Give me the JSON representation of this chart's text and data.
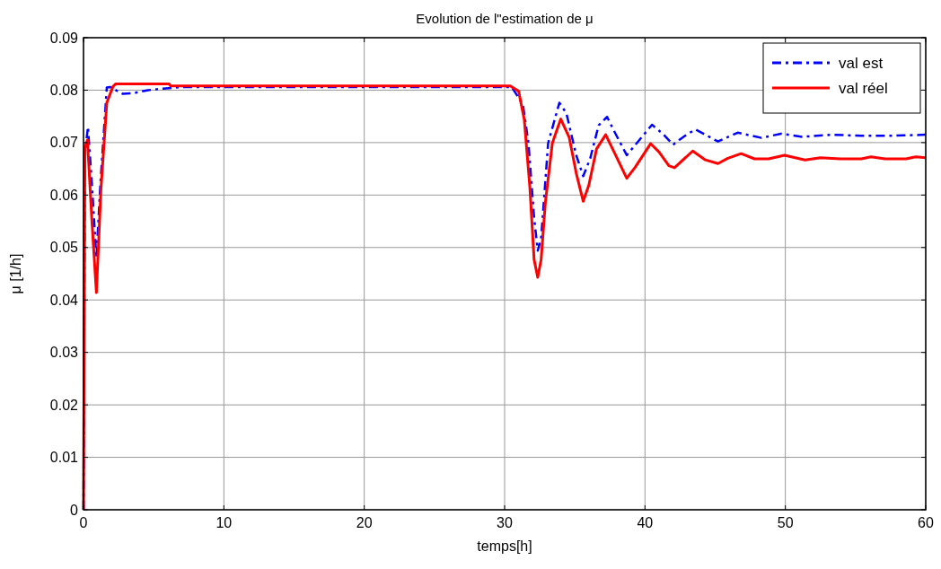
{
  "chart_data": {
    "type": "line",
    "title": "Evolution de l\"estimation de μ",
    "xlabel": "temps[h]",
    "ylabel": "μ [1/h]",
    "xlim": [
      0,
      60
    ],
    "xticks": [
      0,
      10,
      20,
      30,
      40,
      50,
      60
    ],
    "ylim": [
      0,
      0.09
    ],
    "yticks": [
      0,
      0.01,
      0.02,
      0.03,
      0.04,
      0.05,
      0.06,
      0.07,
      0.08,
      0.09
    ],
    "grid": true,
    "legend": "top right",
    "series": [
      {
        "name": "val est",
        "color": "#0000ff",
        "line_style": "dashdot",
        "x": [
          0,
          0.1,
          0.32,
          0.6,
          0.92,
          1.2,
          1.66,
          1.9,
          2.3,
          2.8,
          3.5,
          4.6,
          5.7,
          7,
          30.5,
          31.3,
          31.7,
          32.1,
          32.36,
          32.6,
          33.1,
          33.9,
          34.4,
          35.1,
          35.6,
          36.1,
          36.7,
          37.3,
          37.8,
          38.7,
          39.6,
          40.5,
          41.3,
          42.0,
          43.0,
          43.6,
          45.2,
          46.6,
          48.3,
          49.7,
          51.2,
          53.3,
          55.4,
          57.5,
          60
        ],
        "values": [
          0,
          0.068,
          0.073,
          0.062,
          0.048,
          0.062,
          0.0805,
          0.0806,
          0.08,
          0.0793,
          0.0794,
          0.08,
          0.0803,
          0.0806,
          0.0806,
          0.0773,
          0.0699,
          0.0557,
          0.0494,
          0.0517,
          0.0699,
          0.0776,
          0.0756,
          0.0676,
          0.0636,
          0.067,
          0.0733,
          0.0749,
          0.0722,
          0.0676,
          0.0705,
          0.0734,
          0.0716,
          0.0696,
          0.0716,
          0.0725,
          0.0702,
          0.0719,
          0.0709,
          0.0717,
          0.0711,
          0.0715,
          0.0713,
          0.0713,
          0.0715
        ]
      },
      {
        "name": "val réel",
        "color": "#ff0000",
        "x": [
          0,
          0.1,
          0.28,
          0.6,
          0.92,
          1.24,
          1.66,
          2.1,
          2.3,
          6.1,
          6.2,
          30.4,
          31.0,
          31.4,
          31.8,
          32.1,
          32.36,
          32.6,
          32.9,
          33.4,
          34.0,
          34.6,
          35.1,
          35.6,
          36.0,
          36.55,
          37.2,
          37.8,
          38.7,
          39.3,
          40.4,
          41.0,
          41.7,
          42.1,
          43.4,
          44.3,
          45.2,
          45.9,
          46.85,
          47.8,
          48.8,
          49.94,
          51.4,
          52.5,
          53.9,
          55.4,
          56.1,
          57.1,
          58.6,
          59.3,
          60
        ],
        "values": [
          0,
          0.069,
          0.0705,
          0.055,
          0.0414,
          0.061,
          0.0776,
          0.0807,
          0.0812,
          0.0812,
          0.0808,
          0.0808,
          0.0798,
          0.0744,
          0.0614,
          0.0477,
          0.0443,
          0.0477,
          0.0585,
          0.0699,
          0.0745,
          0.071,
          0.0642,
          0.0588,
          0.0619,
          0.0688,
          0.0715,
          0.0682,
          0.0632,
          0.0653,
          0.0698,
          0.0682,
          0.0656,
          0.0652,
          0.0684,
          0.0667,
          0.066,
          0.067,
          0.0679,
          0.0669,
          0.0669,
          0.0676,
          0.0667,
          0.0671,
          0.0669,
          0.0669,
          0.0673,
          0.0669,
          0.0669,
          0.0673,
          0.0671
        ]
      }
    ]
  }
}
